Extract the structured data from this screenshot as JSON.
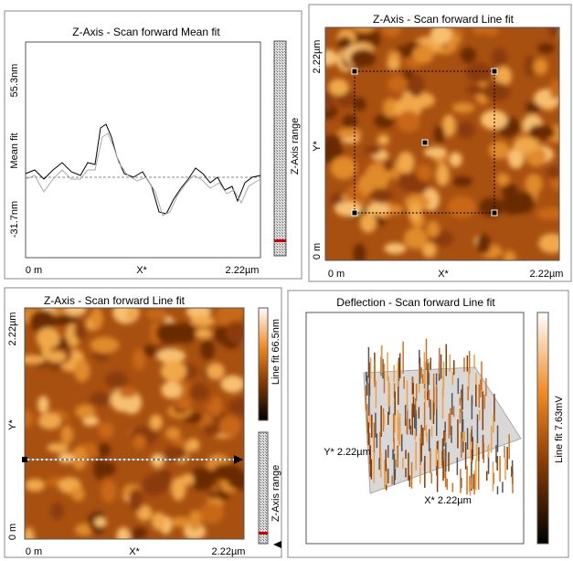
{
  "panels": [
    {
      "title": "Z-Axis - Scan forward   Mean fit",
      "y_label": "Mean fit",
      "y_top": "55.3nm",
      "y_bottom": "-31.7nm",
      "x_left": "0 m",
      "x_mid": "X*",
      "x_right": "2.22µm",
      "side_label": "Z-Axis range"
    },
    {
      "title": "Z-Axis - Scan forward   Line fit",
      "y_top": "2.22µm",
      "y_mid": "Y*",
      "y_bottom": "0 m",
      "x_left": "0 m",
      "x_mid": "X*",
      "x_right": "2.22µm"
    },
    {
      "title": "Z-Axis - Scan forward   Line fit",
      "y_top": "2.22µm",
      "y_mid": "Y*",
      "y_bottom": "0 m",
      "x_left": "0 m",
      "x_mid": "X*",
      "x_right": "2.22µm",
      "colorbar_label": "Line fit 66.5nm",
      "side_label": "Z-Axis range"
    },
    {
      "title": "Deflection - Scan forward   Line fit",
      "y_label": "Y* 2.22µm",
      "x_label": "X* 2.22µm",
      "colorbar_label": "Line fit 7.63mV"
    }
  ]
}
